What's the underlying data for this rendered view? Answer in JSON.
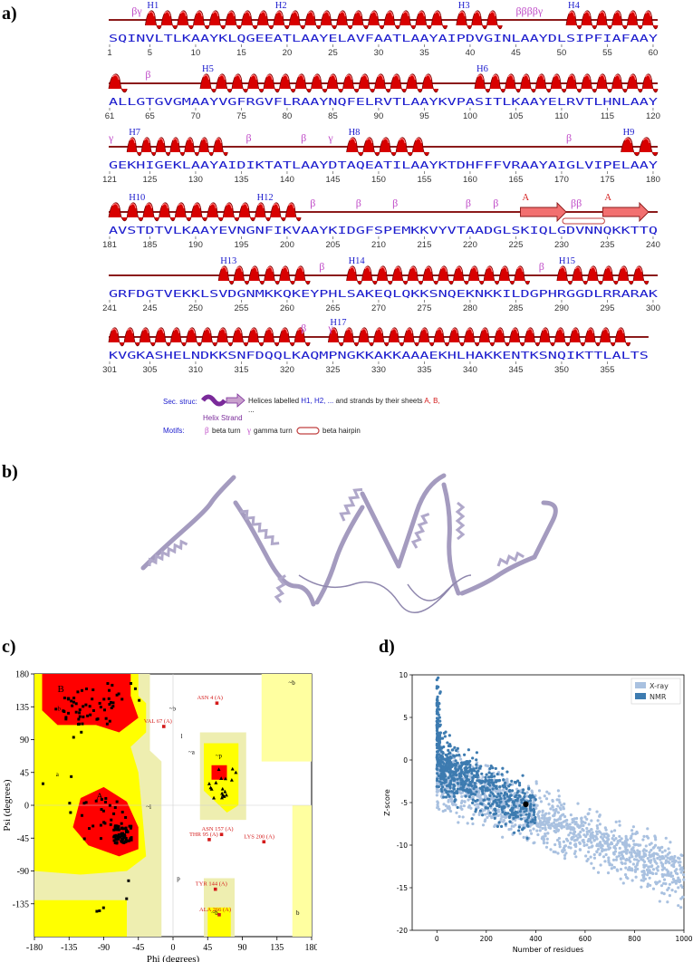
{
  "labels": {
    "a": "a)",
    "b": "b)",
    "c": "c)",
    "d": "d)"
  },
  "sequence_rows": [
    {
      "seq": "SQINVLTLKAAYKLQGEEATLAAYELAVFAATLAAYAIPDVGINLAAYDLSIPFIAFAAY",
      "start": 1,
      "nums": [
        "1",
        "5",
        "10",
        "15",
        "20",
        "25",
        "30",
        "35",
        "40",
        "45",
        "50",
        "55",
        "60"
      ],
      "helices": [
        {
          "label": "H1",
          "from": 5,
          "to": 18
        },
        {
          "label": "H2",
          "from": 19,
          "to": 37
        },
        {
          "label": "H3",
          "from": 39,
          "to": 43
        },
        {
          "label": "H4",
          "from": 51,
          "to": 60
        }
      ],
      "motifs": [
        {
          "text": "βγ",
          "at": 3.5
        },
        {
          "text": "ββββγ",
          "at": 45.5
        }
      ],
      "strands": []
    },
    {
      "seq": "ALLGTGVGMAAYVGFRGVFLRAAYNQFELRVTLAAYKVPASITLKAAYELRVTLHNLAAY",
      "start": 61,
      "nums": [
        "61",
        "65",
        "70",
        "75",
        "80",
        "85",
        "90",
        "95",
        "100",
        "105",
        "110",
        "115",
        "120"
      ],
      "helices": [
        {
          "label": "",
          "from": 61,
          "to": 62
        },
        {
          "label": "H5",
          "from": 71,
          "to": 96
        },
        {
          "label": "H6",
          "from": 101,
          "to": 120
        }
      ],
      "motifs": [
        {
          "text": "β",
          "at": 65
        }
      ],
      "strands": []
    },
    {
      "seq": "GEKHIGEKLAAYAIDIKTATLAAYDTAQEATILAAYKTDHFFFVRAAYAIGLVIPELAAY",
      "start": 121,
      "nums": [
        "121",
        "125",
        "130",
        "135",
        "140",
        "145",
        "150",
        "155",
        "160",
        "165",
        "170",
        "175",
        "180"
      ],
      "helices": [
        {
          "label": "H7",
          "from": 123,
          "to": 133
        },
        {
          "label": "H8",
          "from": 147,
          "to": 155
        },
        {
          "label": "H9",
          "from": 177,
          "to": 180
        }
      ],
      "motifs": [
        {
          "text": "γ",
          "at": 121
        },
        {
          "text": "β",
          "at": 136
        },
        {
          "text": "β",
          "at": 142
        },
        {
          "text": "γ",
          "at": 145
        },
        {
          "text": "β",
          "at": 171
        }
      ],
      "strands": []
    },
    {
      "seq": "AVSTDTVLKAAYEVNGNFIKVAAYKIDGFSPEMKKVYVTAADGLSKIQLGDVNNQKKTTQ",
      "start": 181,
      "nums": [
        "181",
        "185",
        "190",
        "195",
        "200",
        "205",
        "210",
        "215",
        "220",
        "225",
        "230",
        "235",
        "240"
      ],
      "helices": [
        {
          "label": "",
          "from": 181,
          "to": 182
        },
        {
          "label": "H10",
          "from": 183,
          "to": 196
        },
        {
          "label": "H12",
          "from": 197,
          "to": 201
        }
      ],
      "motifs": [
        {
          "text": "β",
          "at": 203
        },
        {
          "text": "β",
          "at": 208
        },
        {
          "text": "β",
          "at": 212
        },
        {
          "text": "β",
          "at": 220
        },
        {
          "text": "β",
          "at": 223
        },
        {
          "text": "ββ",
          "at": 231.5
        }
      ],
      "strands": [
        {
          "label": "A",
          "from": 226,
          "to": 230
        },
        {
          "label": "A",
          "from": 235,
          "to": 239
        }
      ]
    },
    {
      "seq": "GRFDGTVEKKLSVDGNMKKQKEYPHLSAKEQLQKKSNQEKNKKILDGPHRGGDLRRARAK",
      "start": 241,
      "nums": [
        "241",
        "245",
        "250",
        "255",
        "260",
        "265",
        "270",
        "275",
        "280",
        "285",
        "290",
        "295",
        "300"
      ],
      "helices": [
        {
          "label": "H13",
          "from": 253,
          "to": 262
        },
        {
          "label": "H14",
          "from": 267,
          "to": 286
        },
        {
          "label": "H15",
          "from": 290,
          "to": 299
        }
      ],
      "motifs": [
        {
          "text": "β",
          "at": 264
        },
        {
          "text": "β",
          "at": 288
        }
      ],
      "strands": []
    },
    {
      "seq": "KVGKASHELNDKKSNFDQQLKAQMPNGKKAKKAAAEKHLHAKKENTKSNQIKTTLALTS",
      "start": 301,
      "nums": [
        "301",
        "305",
        "310",
        "315",
        "320",
        "325",
        "330",
        "335",
        "340",
        "345",
        "350",
        "355"
      ],
      "helices": [
        {
          "label": "",
          "from": 301,
          "to": 322
        },
        {
          "label": "H17",
          "from": 325,
          "to": 357
        }
      ],
      "motifs": [
        {
          "text": "β",
          "at": 322
        },
        {
          "text": "γ",
          "at": 325
        }
      ],
      "strands": []
    }
  ],
  "legend": {
    "sec_struc_label": "Sec. struc:",
    "sec_struc_desc_1": "Helices labelled ",
    "sec_struc_desc_h": "H1, H2, ...",
    "sec_struc_desc_2": " and strands by their sheets ",
    "sec_struc_desc_s": "A, B,",
    "ellipsis": "...",
    "helix_strand": "Helix Strand",
    "motifs_label": "Motifs:",
    "beta_turn": "beta turn",
    "gamma_turn": "gamma turn",
    "beta_hairpin": "beta hairpin",
    "beta_glyph": "β",
    "gamma_glyph": "γ"
  },
  "ramachandran": {
    "xlabel": "Phi (degrees)",
    "ylabel": "Psi (degrees)",
    "xticks": [
      "-180",
      "-135",
      "-90",
      "-45",
      "0",
      "45",
      "90",
      "135",
      "180"
    ],
    "yticks": [
      "180",
      "135",
      "90",
      "45",
      "0",
      "-45",
      "-90",
      "-135"
    ],
    "region_labels": [
      "B",
      "b",
      "a",
      "A",
      "~b",
      "~l",
      "l",
      "~a",
      "~p",
      "p",
      "~b",
      "~b",
      "b"
    ],
    "outliers": [
      {
        "label": "ASN 4 (A)",
        "phi": 57,
        "psi": 140
      },
      {
        "label": "VAL 67 (A)",
        "phi": -12,
        "psi": 108
      },
      {
        "label": "ASN 157 (A)",
        "phi": 63,
        "psi": -40
      },
      {
        "label": "THR 95 (A)",
        "phi": 47,
        "psi": -47
      },
      {
        "label": "LYS 200 (A)",
        "phi": 118,
        "psi": -50
      },
      {
        "label": "TYR 144 (A)",
        "phi": 55,
        "psi": -115
      },
      {
        "label": "ALA 266 (A)",
        "phi": 60,
        "psi": -150
      }
    ],
    "colors": {
      "core": "#ff0000",
      "allowed": "#ffff00",
      "generous": "#ffffa0",
      "gen_edge": "#eeeeb0"
    }
  },
  "zscore": {
    "xlabel": "Number of residues",
    "ylabel": "Z-score",
    "xlim": [
      -100,
      1000
    ],
    "ylim": [
      -20,
      10
    ],
    "xticks": [
      "0",
      "200",
      "400",
      "600",
      "800",
      "1000"
    ],
    "yticks": [
      "10",
      "5",
      "0",
      "-5",
      "-10",
      "-15",
      "-20"
    ],
    "legend": [
      "X-ray",
      "NMR"
    ],
    "colors": {
      "xray": "#a9c1e0",
      "nmr": "#3d7bb0"
    },
    "highlight": {
      "residues": 360,
      "zscore": -5.2
    }
  },
  "chart_data": {
    "type": "scatter",
    "title": "",
    "xlabel": "Number of residues",
    "ylabel": "Z-score",
    "xlim": [
      -100,
      1000
    ],
    "ylim": [
      -20,
      10
    ],
    "series": [
      {
        "name": "X-ray",
        "trend": [
          [
            0,
            -2
          ],
          [
            200,
            -4.5
          ],
          [
            400,
            -7
          ],
          [
            600,
            -9.5
          ],
          [
            800,
            -11.5
          ],
          [
            1000,
            -13
          ]
        ]
      },
      {
        "name": "NMR",
        "trend": [
          [
            0,
            0
          ],
          [
            100,
            -3.5
          ],
          [
            200,
            -5
          ],
          [
            400,
            -7
          ]
        ]
      }
    ],
    "query_point": {
      "x": 360,
      "y": -5.2
    }
  }
}
